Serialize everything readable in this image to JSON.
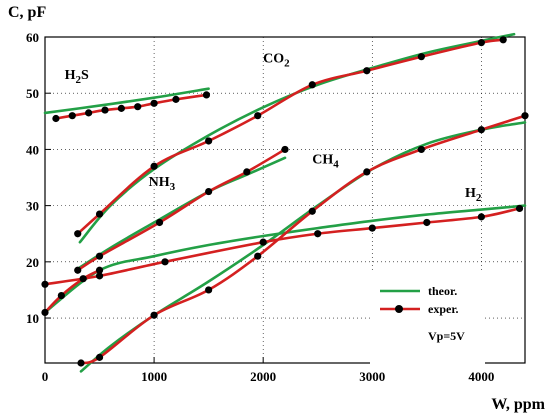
{
  "chart_data": {
    "type": "line",
    "title": "",
    "xlabel": "W, ppm",
    "ylabel": "C, pF",
    "xlim": [
      0,
      4400
    ],
    "ylim": [
      2,
      60
    ],
    "xticks": [
      0,
      1000,
      2000,
      3000,
      4000
    ],
    "yticks": [
      10,
      20,
      30,
      40,
      50,
      60
    ],
    "grid": true,
    "legend": {
      "position": "bottom-right",
      "entries": [
        {
          "label": "theor.",
          "color": "#23a046",
          "marker": false
        },
        {
          "label": "exper.",
          "color": "#d42020",
          "marker": true
        }
      ],
      "note": "Vp=5V"
    },
    "gas_labels": [
      {
        "main": "H",
        "sub": "2",
        "tail": "S",
        "x": 180,
        "y": 52.5
      },
      {
        "main": "CO",
        "sub": "2",
        "tail": "",
        "x": 2000,
        "y": 55.5
      },
      {
        "main": "NH",
        "sub": "3",
        "tail": "",
        "x": 950,
        "y": 33.5
      },
      {
        "main": "CH",
        "sub": "4",
        "tail": "",
        "x": 2450,
        "y": 37.5
      },
      {
        "main": "H",
        "sub": "2",
        "tail": "",
        "x": 3850,
        "y": 31.5
      }
    ],
    "series": [
      {
        "gas": "H2S",
        "kind": "theor",
        "x": [
          0,
          500,
          1000,
          1500
        ],
        "y": [
          46.5,
          47.8,
          49.2,
          50.8
        ]
      },
      {
        "gas": "H2S",
        "kind": "exper",
        "x": [
          100,
          250,
          400,
          550,
          700,
          850,
          1000,
          1200,
          1480
        ],
        "y": [
          45.5,
          46.0,
          46.5,
          47.0,
          47.3,
          47.6,
          48.2,
          48.9,
          49.7
        ]
      },
      {
        "gas": "CO2",
        "kind": "theor",
        "x": [
          320,
          600,
          1000,
          1500,
          2000,
          2500,
          3000,
          3500,
          4000,
          4300
        ],
        "y": [
          23.5,
          30.0,
          36.5,
          42.5,
          47.5,
          51.5,
          54.5,
          57.2,
          59.3,
          60.5
        ]
      },
      {
        "gas": "CO2",
        "kind": "exper",
        "x": [
          300,
          500,
          1000,
          1500,
          1950,
          2450,
          2950,
          3450,
          4000,
          4200
        ],
        "y": [
          25.0,
          28.5,
          37.0,
          41.5,
          46.0,
          51.5,
          54.0,
          56.5,
          59.0,
          59.5
        ]
      },
      {
        "gas": "NH3",
        "kind": "theor",
        "x": [
          320,
          600,
          1000,
          1500,
          1850,
          2200
        ],
        "y": [
          19.0,
          22.5,
          27.0,
          32.5,
          35.5,
          38.5
        ]
      },
      {
        "gas": "NH3",
        "kind": "exper",
        "x": [
          300,
          500,
          1050,
          1500,
          1850,
          2200
        ],
        "y": [
          18.5,
          21.0,
          27.0,
          32.5,
          36.0,
          40.0
        ]
      },
      {
        "gas": "CH4",
        "kind": "theor",
        "x": [
          330,
          600,
          1000,
          1500,
          2000,
          2500,
          3000,
          3500,
          4000,
          4400
        ],
        "y": [
          0.5,
          5.0,
          10.5,
          16.5,
          23.0,
          30.0,
          36.5,
          41.0,
          43.5,
          44.8
        ]
      },
      {
        "gas": "CH4",
        "kind": "exper",
        "x": [
          330,
          500,
          1000,
          1500,
          1950,
          2450,
          2950,
          3450,
          4000,
          4400
        ],
        "y": [
          2.0,
          3.0,
          10.5,
          15.0,
          21.0,
          29.0,
          36.0,
          40.0,
          43.5,
          46.0
        ]
      },
      {
        "gas": "H2",
        "kind": "theor",
        "x": [
          0,
          500,
          1000,
          1500,
          2000,
          2500,
          3000,
          3500,
          4000,
          4400
        ],
        "y": [
          11.0,
          18.5,
          21.0,
          23.0,
          24.6,
          26.0,
          27.3,
          28.4,
          29.3,
          30.0
        ]
      },
      {
        "gas": "H2",
        "kind": "exper",
        "x": [
          0,
          500,
          1100,
          2000,
          2500,
          3000,
          3500,
          4000,
          4350
        ],
        "y": [
          16.0,
          17.5,
          20.0,
          23.5,
          25.0,
          26.0,
          27.0,
          28.0,
          29.5
        ]
      },
      {
        "gas": "H2-low",
        "kind": "exper",
        "x": [
          0,
          150,
          350,
          500
        ],
        "y": [
          11.0,
          14.0,
          17.0,
          18.5
        ]
      }
    ]
  },
  "colors": {
    "theor": "#23a046",
    "exper": "#d42020",
    "grid": "#000000",
    "marker": "#000000"
  }
}
